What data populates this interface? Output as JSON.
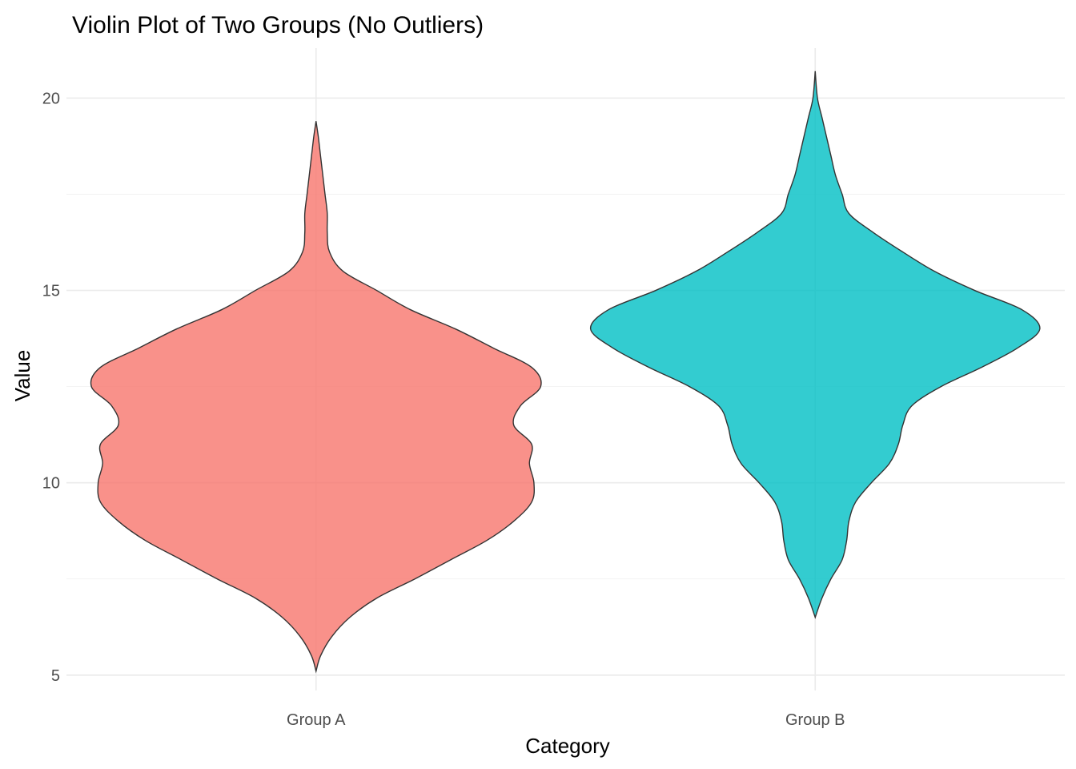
{
  "chart_data": {
    "type": "violin",
    "title": "Violin Plot of Two Groups (No Outliers)",
    "xlabel": "Category",
    "ylabel": "Value",
    "categories": [
      "Group A",
      "Group B"
    ],
    "ylim": [
      4.6,
      21.3
    ],
    "y_ticks": [
      5,
      10,
      15,
      20
    ],
    "y_tick_labels": [
      "5",
      "10",
      "15",
      "20"
    ],
    "grid": true,
    "fill_opacity": 0.8,
    "series": [
      {
        "category": "Group A",
        "color": "#F8766D",
        "min": 5.1,
        "max": 19.4,
        "mode": 12.5,
        "density_profile": [
          [
            5.1,
            0.0
          ],
          [
            5.5,
            0.02
          ],
          [
            6.0,
            0.07
          ],
          [
            6.5,
            0.15
          ],
          [
            7.0,
            0.27
          ],
          [
            7.5,
            0.44
          ],
          [
            8.0,
            0.6
          ],
          [
            8.5,
            0.76
          ],
          [
            9.0,
            0.88
          ],
          [
            9.5,
            0.96
          ],
          [
            10.0,
            0.97
          ],
          [
            10.5,
            0.95
          ],
          [
            11.0,
            0.96
          ],
          [
            11.5,
            0.88
          ],
          [
            12.0,
            0.91
          ],
          [
            12.5,
            1.0
          ],
          [
            13.0,
            0.96
          ],
          [
            13.5,
            0.79
          ],
          [
            14.0,
            0.62
          ],
          [
            14.5,
            0.42
          ],
          [
            15.0,
            0.27
          ],
          [
            15.5,
            0.12
          ],
          [
            16.0,
            0.06
          ],
          [
            16.5,
            0.05
          ],
          [
            17.0,
            0.05
          ],
          [
            17.5,
            0.04
          ],
          [
            18.0,
            0.03
          ],
          [
            18.5,
            0.02
          ],
          [
            19.0,
            0.01
          ],
          [
            19.4,
            0.0
          ]
        ]
      },
      {
        "category": "Group B",
        "color": "#00BFC4",
        "min": 6.5,
        "max": 20.7,
        "mode": 14.0,
        "density_profile": [
          [
            6.5,
            0.0
          ],
          [
            7.0,
            0.03
          ],
          [
            7.5,
            0.07
          ],
          [
            8.0,
            0.12
          ],
          [
            8.5,
            0.14
          ],
          [
            9.0,
            0.15
          ],
          [
            9.5,
            0.18
          ],
          [
            10.0,
            0.25
          ],
          [
            10.5,
            0.33
          ],
          [
            11.0,
            0.37
          ],
          [
            11.5,
            0.39
          ],
          [
            12.0,
            0.43
          ],
          [
            12.5,
            0.56
          ],
          [
            13.0,
            0.74
          ],
          [
            13.5,
            0.9
          ],
          [
            14.0,
            1.0
          ],
          [
            14.5,
            0.92
          ],
          [
            15.0,
            0.71
          ],
          [
            15.5,
            0.53
          ],
          [
            16.0,
            0.39
          ],
          [
            16.5,
            0.26
          ],
          [
            17.0,
            0.15
          ],
          [
            17.5,
            0.12
          ],
          [
            18.0,
            0.09
          ],
          [
            18.5,
            0.07
          ],
          [
            19.0,
            0.05
          ],
          [
            19.5,
            0.03
          ],
          [
            20.0,
            0.01
          ],
          [
            20.7,
            0.0
          ]
        ]
      }
    ]
  }
}
